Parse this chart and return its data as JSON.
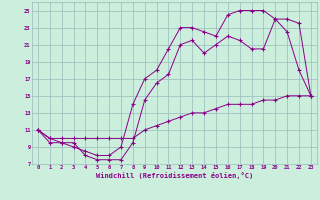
{
  "xlabel": "Windchill (Refroidissement éolien,°C)",
  "bg_color": "#cceedd",
  "line_color": "#880088",
  "grid_color": "#99bbbb",
  "xlim": [
    -0.5,
    23.5
  ],
  "ylim": [
    7,
    26
  ],
  "yticks": [
    7,
    9,
    11,
    13,
    15,
    17,
    19,
    21,
    23,
    25
  ],
  "xticks": [
    0,
    1,
    2,
    3,
    4,
    5,
    6,
    7,
    8,
    9,
    10,
    11,
    12,
    13,
    14,
    15,
    16,
    17,
    18,
    19,
    20,
    21,
    22,
    23
  ],
  "line1_x": [
    0,
    1,
    2,
    3,
    4,
    5,
    6,
    7,
    8,
    9,
    10,
    11,
    12,
    13,
    14,
    15,
    16,
    17,
    18,
    19,
    20,
    21,
    22,
    23
  ],
  "line1_y": [
    11,
    10,
    9.5,
    9,
    8.5,
    8,
    8,
    9,
    14,
    17,
    18,
    20.5,
    23,
    23,
    22.5,
    22,
    24.5,
    25,
    25,
    25,
    24,
    22.5,
    18,
    15
  ],
  "line2_x": [
    0,
    1,
    2,
    3,
    4,
    5,
    6,
    7,
    8,
    9,
    10,
    11,
    12,
    13,
    14,
    15,
    16,
    17,
    18,
    19,
    20,
    21,
    22,
    23
  ],
  "line2_y": [
    11,
    9.5,
    9.5,
    9.5,
    8,
    7.5,
    7.5,
    7.5,
    9.5,
    14.5,
    16.5,
    17.5,
    21,
    21.5,
    20,
    21,
    22,
    21.5,
    20.5,
    20.5,
    24,
    24,
    23.5,
    15
  ],
  "line3_x": [
    0,
    1,
    2,
    3,
    4,
    5,
    6,
    7,
    8,
    9,
    10,
    11,
    12,
    13,
    14,
    15,
    16,
    17,
    18,
    19,
    20,
    21,
    22,
    23
  ],
  "line3_y": [
    11,
    10,
    10,
    10,
    10,
    10,
    10,
    10,
    10,
    11,
    11.5,
    12,
    12.5,
    13,
    13,
    13.5,
    14,
    14,
    14,
    14.5,
    14.5,
    15,
    15,
    15
  ]
}
